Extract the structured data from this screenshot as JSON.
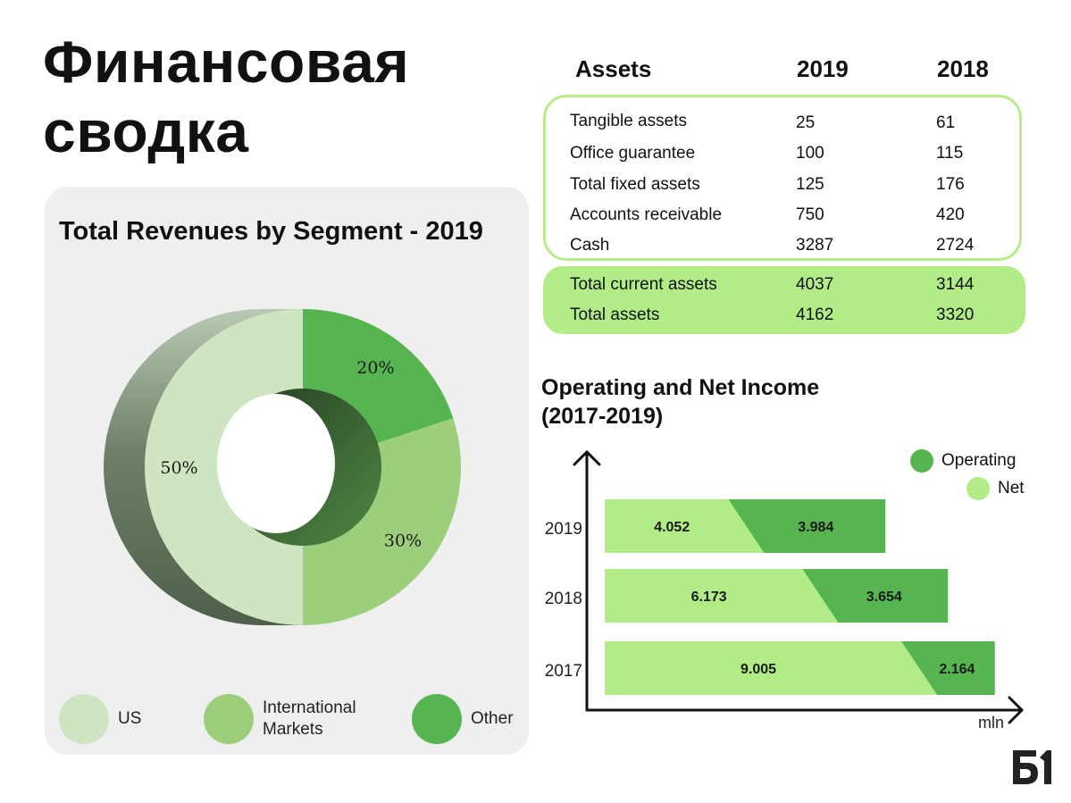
{
  "page": {
    "title_line1": "Финансовая",
    "title_line2": "сводка"
  },
  "colors": {
    "us": "#cfe5c2",
    "international": "#9cce7c",
    "other": "#56b550",
    "net": "#b1ec86",
    "operating": "#56b550",
    "assets_border": "#b7ec8a",
    "panel": "#efefef"
  },
  "assets_table": {
    "header": {
      "label": "Assets",
      "col1": "2019",
      "col2": "2018"
    },
    "rows": [
      {
        "label": "Tangible assets",
        "v2019": "25",
        "v2018": "61"
      },
      {
        "label": "Office guarantee",
        "v2019": "100",
        "v2018": "115"
      },
      {
        "label": "Total fixed assets",
        "v2019": "125",
        "v2018": "176"
      },
      {
        "label": "Accounts receivable",
        "v2019": "750",
        "v2018": "420"
      },
      {
        "label": "Cash",
        "v2019": "3287",
        "v2018": "2724"
      }
    ],
    "totals": [
      {
        "label": "Total current assets",
        "v2019": "4037",
        "v2018": "3144"
      },
      {
        "label": "Total assets",
        "v2019": "4162",
        "v2018": "3320"
      }
    ]
  },
  "chart_data": [
    {
      "type": "pie",
      "variant": "donut-3d",
      "title": "Total Revenues by Segment - 2019",
      "categories": [
        "US",
        "International Markets",
        "Other"
      ],
      "values": [
        50,
        30,
        20
      ],
      "labels": [
        "50%",
        "30%",
        "20%"
      ],
      "legend": [
        "US",
        "International Markets",
        "Other"
      ],
      "legend_position": "bottom"
    },
    {
      "type": "bar",
      "orientation": "horizontal",
      "stacked": true,
      "title": "Operating and Net Income (2017-2019)",
      "categories": [
        "2019",
        "2018",
        "2017"
      ],
      "series": [
        {
          "name": "Net",
          "values": [
            4.052,
            6.173,
            9.005
          ],
          "labels": [
            "4.052",
            "6.173",
            "9.005"
          ]
        },
        {
          "name": "Operating",
          "values": [
            3.984,
            3.654,
            2.164
          ],
          "labels": [
            "3.984",
            "3.654",
            "2.164"
          ]
        }
      ],
      "xlabel": "mln",
      "legend_position": "top-right"
    }
  ],
  "logo": {
    "text": "Б1"
  }
}
